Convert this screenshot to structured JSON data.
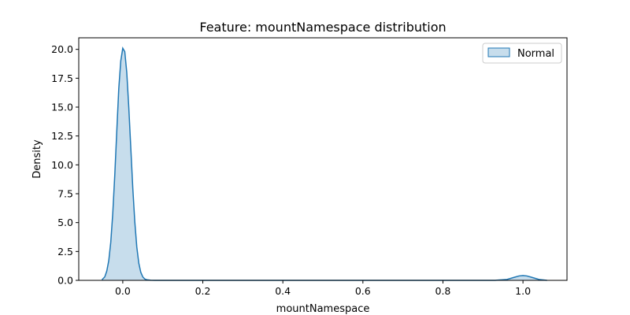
{
  "chart_data": {
    "type": "area",
    "title": "Feature: mountNamespace distribution",
    "xlabel": "mountNamespace",
    "ylabel": "Density",
    "xlim": [
      -0.11,
      1.11
    ],
    "ylim": [
      0,
      21.0
    ],
    "xticks": [
      0.0,
      0.2,
      0.4,
      0.6,
      0.8,
      1.0
    ],
    "xtick_labels": [
      "0.0",
      "0.2",
      "0.4",
      "0.6",
      "0.8",
      "1.0"
    ],
    "yticks": [
      0.0,
      2.5,
      5.0,
      7.5,
      10.0,
      12.5,
      15.0,
      17.5,
      20.0
    ],
    "ytick_labels": [
      "0.0",
      "2.5",
      "5.0",
      "7.5",
      "10.0",
      "12.5",
      "15.0",
      "17.5",
      "20.0"
    ],
    "grid": false,
    "legend": "top-right",
    "series": [
      {
        "name": "Normal",
        "color": "#1f77b4",
        "fill_color": "#1f77b4",
        "x": [
          -0.052,
          -0.045,
          -0.04,
          -0.035,
          -0.03,
          -0.025,
          -0.02,
          -0.015,
          -0.01,
          -0.005,
          0.0,
          0.005,
          0.01,
          0.015,
          0.02,
          0.025,
          0.03,
          0.035,
          0.04,
          0.045,
          0.05,
          0.055,
          0.06,
          0.07,
          0.08,
          0.1,
          0.2,
          0.4,
          0.6,
          0.8,
          0.93,
          0.96,
          0.98,
          0.99,
          1.0,
          1.01,
          1.02,
          1.04,
          1.06
        ],
        "y": [
          0.05,
          0.3,
          0.8,
          1.7,
          3.3,
          5.8,
          9.1,
          12.9,
          16.6,
          19.0,
          20.1,
          19.8,
          18.0,
          15.0,
          11.5,
          8.0,
          5.1,
          2.9,
          1.5,
          0.7,
          0.3,
          0.12,
          0.05,
          0.01,
          0.0,
          0.0,
          0.0,
          0.0,
          0.0,
          0.0,
          0.0,
          0.08,
          0.28,
          0.38,
          0.42,
          0.38,
          0.28,
          0.08,
          0.0
        ]
      }
    ]
  }
}
